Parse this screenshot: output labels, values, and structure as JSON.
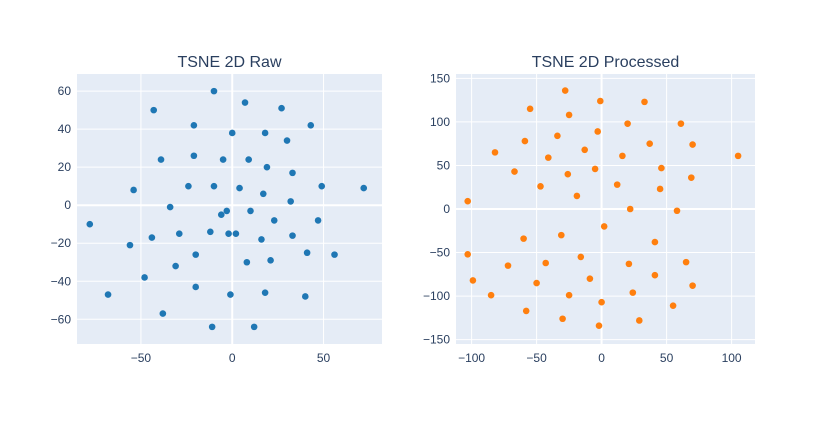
{
  "chart_data": [
    {
      "type": "scatter",
      "title": "TSNE 2D Raw",
      "xlim": [
        -85,
        82
      ],
      "ylim": [
        -73,
        69
      ],
      "xticks": [
        -50,
        0,
        50
      ],
      "xtick_labels": [
        "−50",
        "0",
        "50"
      ],
      "yticks": [
        -60,
        -40,
        -20,
        0,
        20,
        40,
        60
      ],
      "ytick_labels": [
        "−60",
        "−40",
        "−20",
        "0",
        "20",
        "40",
        "60"
      ],
      "grid": true,
      "color": "#1f77b4",
      "x": [
        -10,
        7,
        -43,
        27,
        -21,
        43,
        0,
        18,
        30,
        -39,
        -21,
        9,
        -5,
        19,
        33,
        -24,
        -10,
        4,
        -54,
        17,
        32,
        -34,
        10,
        -3,
        -6,
        49,
        72,
        -78,
        23,
        -12,
        -2,
        47,
        2,
        -29,
        16,
        33,
        -44,
        -56,
        -20,
        21,
        8,
        -31,
        41,
        56,
        -48,
        -20,
        -68,
        18,
        -1,
        40,
        -38,
        -11,
        12
      ],
      "y": [
        60,
        54,
        50,
        51,
        42,
        42,
        38,
        38,
        34,
        24,
        26,
        24,
        24,
        20,
        17,
        10,
        10,
        9,
        8,
        6,
        2,
        -1,
        -3,
        -3,
        -5,
        10,
        9,
        -10,
        -8,
        -14,
        -15,
        -8,
        -15,
        -15,
        -18,
        -16,
        -17,
        -21,
        -26,
        -29,
        -30,
        -32,
        -25,
        -26,
        -38,
        -43,
        -47,
        -46,
        -47,
        -48,
        -57,
        -64,
        -64
      ]
    },
    {
      "type": "scatter",
      "title": "TSNE 2D Processed",
      "xlim": [
        -112,
        118
      ],
      "ylim": [
        -155,
        155
      ],
      "xticks": [
        -100,
        -50,
        0,
        50,
        100
      ],
      "xtick_labels": [
        "−100",
        "−50",
        "0",
        "50",
        "100"
      ],
      "yticks": [
        -150,
        -100,
        -50,
        0,
        50,
        100,
        150
      ],
      "yticks_note": "",
      "ytick_labels": [
        "−150",
        "−100",
        "−50",
        "0",
        "50",
        "100",
        "150"
      ],
      "grid": true,
      "color": "#ff7f0e",
      "x": [
        -28,
        33,
        -1,
        -55,
        -25,
        20,
        61,
        -3,
        -34,
        -59,
        37,
        70,
        -82,
        -13,
        -41,
        16,
        46,
        -5,
        -67,
        -26,
        69,
        -47,
        12,
        45,
        -103,
        -19,
        22,
        58,
        105,
        2,
        -31,
        -60,
        41,
        -103,
        -99,
        -16,
        21,
        -72,
        65,
        -43,
        -9,
        41,
        -50,
        70,
        -25,
        24,
        -85,
        55,
        -58,
        -30,
        29,
        -2,
        0
      ],
      "y": [
        136,
        123,
        124,
        115,
        108,
        98,
        98,
        89,
        84,
        78,
        75,
        74,
        65,
        68,
        59,
        61,
        47,
        46,
        43,
        40,
        36,
        26,
        28,
        23,
        9,
        15,
        0,
        -2,
        61,
        -20,
        -30,
        -34,
        -38,
        -52,
        -82,
        -55,
        -63,
        -65,
        -61,
        -62,
        -80,
        -76,
        -85,
        -88,
        -99,
        -96,
        -99,
        -111,
        -117,
        -126,
        -128,
        -134,
        -107
      ]
    }
  ]
}
